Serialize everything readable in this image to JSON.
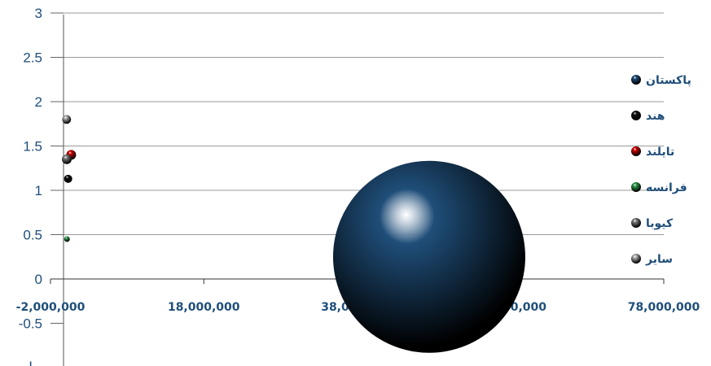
{
  "chart_data": {
    "type": "bubble",
    "xlim": [
      -2000000,
      78000000
    ],
    "ylim": [
      -1,
      3
    ],
    "x_ticks": [
      "-2,000,000",
      "18,000,000",
      "38,000,000",
      "58,000,000",
      "78,000,000"
    ],
    "y_ticks": [
      "-0.5",
      "0",
      "0.5",
      "1",
      "1.5",
      "2",
      "2.5",
      "3"
    ],
    "y_tick_values": [
      -0.5,
      0,
      0.5,
      1,
      1.5,
      2,
      2.5,
      3
    ],
    "bottom_tick_label": "I",
    "grid": true,
    "legend_position": "right",
    "series": [
      {
        "name": "پاکستان",
        "color": "#1f4e79",
        "x": 47400000,
        "y": 0.25,
        "size": 47400000
      },
      {
        "name": "هند",
        "color": "#111111",
        "x": 300000,
        "y": 1.13,
        "size": 300000
      },
      {
        "name": "تایلند",
        "color": "#d40000",
        "x": 700000,
        "y": 1.4,
        "size": 700000
      },
      {
        "name": "فرانسه",
        "color": "#2e9e4f",
        "x": 150000,
        "y": 0.45,
        "size": 150000
      },
      {
        "name": "کیوبا",
        "color": "#808080",
        "x": 120000,
        "y": 1.35,
        "size": 120000
      },
      {
        "name": "سایر",
        "color": "#b0b0b0",
        "x": 100000,
        "y": 1.8,
        "size": 100000
      }
    ]
  }
}
